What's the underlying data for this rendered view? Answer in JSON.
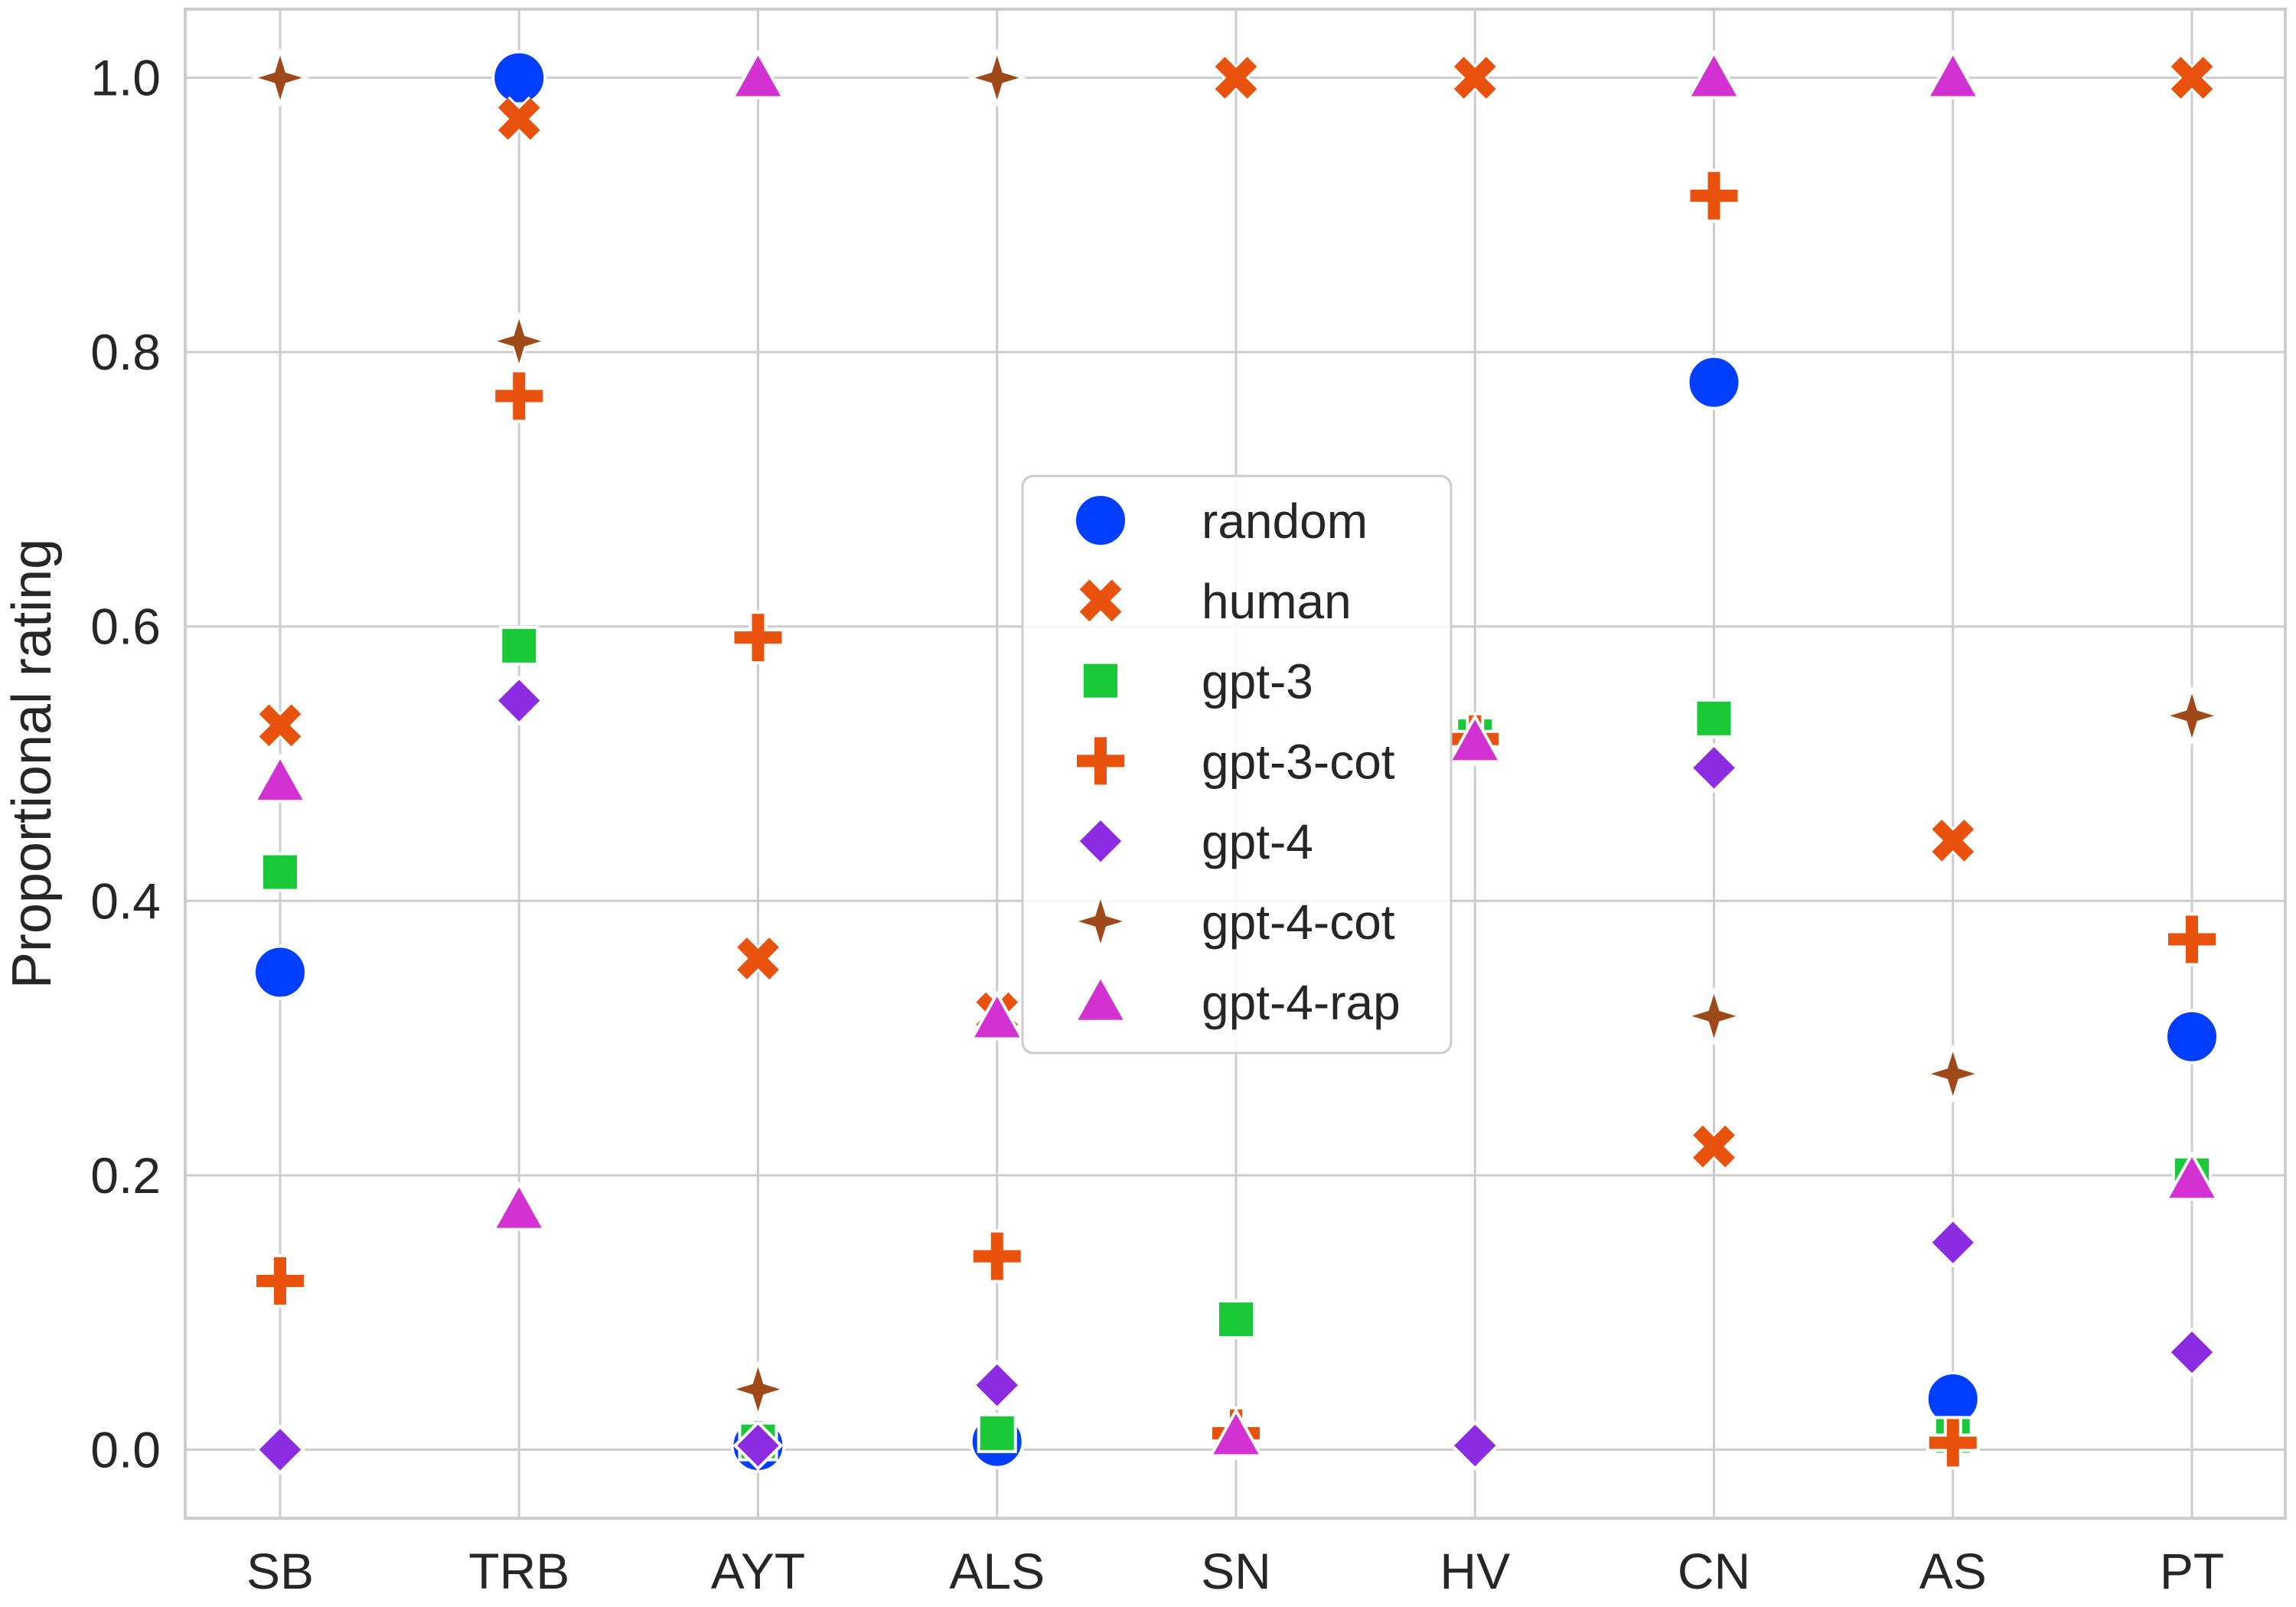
{
  "chart_data": {
    "type": "scatter",
    "title": "",
    "xlabel": "",
    "ylabel": "Proportional rating",
    "ylim": [
      -0.05,
      1.05
    ],
    "yticks": [
      "0.0",
      "0.2",
      "0.4",
      "0.6",
      "0.8",
      "1.0"
    ],
    "categories": [
      "SB",
      "TRB",
      "AYT",
      "ALS",
      "SN",
      "HV",
      "CN",
      "AS",
      "PT"
    ],
    "grid": true,
    "legend_position": "center",
    "series": [
      {
        "name": "random",
        "marker": "circle",
        "color": "#023eff",
        "values": [
          0.348,
          1.0,
          0.003,
          0.006,
          null,
          null,
          0.778,
          0.037,
          0.301
        ]
      },
      {
        "name": "human",
        "marker": "x",
        "color": "#e8520c",
        "values": [
          0.528,
          0.97,
          0.358,
          0.318,
          1.0,
          1.0,
          0.221,
          0.444,
          1.0
        ]
      },
      {
        "name": "gpt-3",
        "marker": "square",
        "color": "#1ac938",
        "values": [
          0.421,
          0.586,
          0.006,
          0.012,
          0.095,
          0.52,
          0.533,
          0.01,
          0.2
        ]
      },
      {
        "name": "gpt-3-cot",
        "marker": "plus",
        "color": "#e8520c",
        "values": [
          0.123,
          0.768,
          0.592,
          0.141,
          0.012,
          0.518,
          0.914,
          0.005,
          0.372
        ]
      },
      {
        "name": "gpt-4",
        "marker": "diamond",
        "color": "#8b2be2",
        "values": [
          0.0,
          0.546,
          0.003,
          0.047,
          null,
          0.003,
          0.497,
          0.151,
          0.071
        ]
      },
      {
        "name": "gpt-4-cot",
        "marker": "star4",
        "color": "#9f4818",
        "values": [
          1.0,
          0.808,
          0.044,
          1.0,
          null,
          null,
          0.316,
          0.274,
          0.535
        ]
      },
      {
        "name": "gpt-4-rap",
        "marker": "triangle",
        "color": "#d332d3",
        "values": [
          0.487,
          0.175,
          1.0,
          0.314,
          0.01,
          0.516,
          1.0,
          1.0,
          0.197
        ]
      }
    ]
  }
}
